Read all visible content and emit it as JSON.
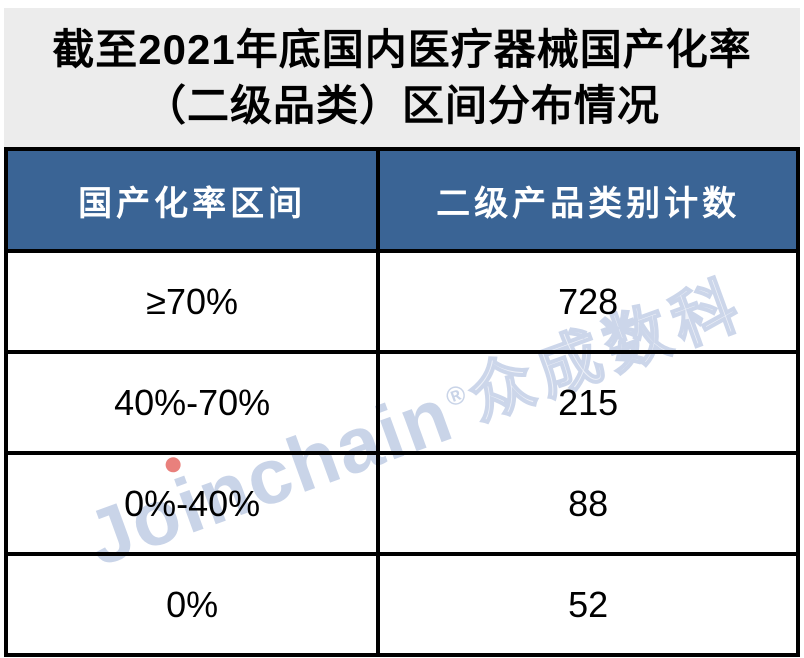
{
  "title": {
    "line1": "截至2021年底国内医疗器械国产化率",
    "line2": "（二级品类）区间分布情况"
  },
  "table": {
    "columns": [
      "国产化率区间",
      "二级产品类别计数"
    ],
    "rows": [
      {
        "range": "≥70%",
        "count": "728"
      },
      {
        "range": "40%-70%",
        "count": "215"
      },
      {
        "range": "0%-40%",
        "count": "88"
      },
      {
        "range": "0%",
        "count": "52"
      }
    ]
  },
  "watermark": {
    "brand": "Joinchain",
    "reg": "®",
    "cn": "众成数科"
  },
  "colors": {
    "header_bg": "#3a6495",
    "header_text": "#ffffff",
    "title_bg": "#ececec",
    "border": "#000000",
    "watermark_text": "#c9d4e8",
    "watermark_dot": "#e9807c"
  },
  "chart_data": {
    "type": "table",
    "title": "截至2021年底国内医疗器械国产化率（二级品类）区间分布情况",
    "columns": [
      "国产化率区间",
      "二级产品类别计数"
    ],
    "categories": [
      "≥70%",
      "40%-70%",
      "0%-40%",
      "0%"
    ],
    "values": [
      728,
      215,
      88,
      52
    ]
  }
}
